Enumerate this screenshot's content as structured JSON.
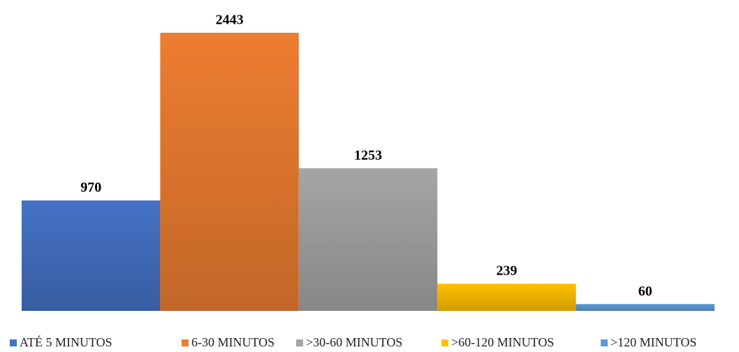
{
  "chart_data": {
    "type": "bar",
    "series": [
      {
        "name": "ATÉ 5 MINUTOS",
        "color": "#4472c4",
        "values": [
          970
        ]
      },
      {
        "name": "6-30 MINUTOS",
        "color": "#ed7d31",
        "values": [
          2443
        ]
      },
      {
        "name": ">30-60 MINUTOS",
        "color": "#a5a5a5",
        "values": [
          1253
        ]
      },
      {
        "name": ">60-120 MINUTOS",
        "color": "#ffc000",
        "values": [
          239
        ]
      },
      {
        "name": ">120 MINUTOS",
        "color": "#5b9bd5",
        "values": [
          60
        ]
      }
    ],
    "legend": "bottom",
    "grid": false
  }
}
